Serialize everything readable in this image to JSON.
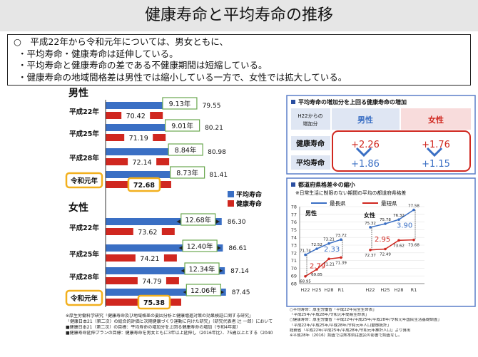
{
  "title": "健康寿命と平均寿命の推移",
  "summary": {
    "lines": [
      "○　平成22年から令和元年については、男女ともに、",
      "・平均寿命・健康寿命は延伸している。",
      "・平均寿命と健康寿命の差である不健康期間は短縮している。",
      "・健康寿命の地域間格差は男性では縮小している一方で、女性では拡大している。"
    ]
  },
  "chart_data": [
    {
      "type": "bar",
      "title": "男性",
      "categories": [
        "平成22年",
        "平成25年",
        "平成28年",
        "令和元年"
      ],
      "series": [
        {
          "name": "平均寿命",
          "values": [
            79.55,
            80.21,
            80.98,
            81.41
          ],
          "color": "#3a6fc4"
        },
        {
          "name": "健康寿命",
          "values": [
            70.42,
            71.19,
            72.14,
            72.68
          ],
          "color": "#d0271f"
        }
      ],
      "gaps": [
        "9.13年",
        "9.01年",
        "8.84年",
        "8.73年"
      ],
      "value_labels": {
        "avg": [
          "79.55",
          "80.21",
          "80.98",
          "81.41"
        ],
        "health": [
          "70.42",
          "71.19",
          "72.14",
          "72.68"
        ]
      },
      "highlight": "令和元年"
    },
    {
      "type": "bar",
      "title": "女性",
      "categories": [
        "平成22年",
        "平成25年",
        "平成28年",
        "令和元年"
      ],
      "series": [
        {
          "name": "平均寿命",
          "values": [
            86.3,
            86.61,
            87.14,
            87.45
          ],
          "color": "#3a6fc4"
        },
        {
          "name": "健康寿命",
          "values": [
            73.62,
            74.21,
            74.79,
            75.38
          ],
          "color": "#d0271f"
        }
      ],
      "gaps": [
        "12.68年",
        "12.40年",
        "12.34年",
        "12.06年"
      ],
      "value_labels": {
        "avg": [
          "86.30",
          "86.61",
          "87.14",
          "87.45"
        ],
        "health": [
          "73.62",
          "74.21",
          "74.79",
          "75.38"
        ]
      },
      "highlight": "令和元年"
    },
    {
      "type": "table",
      "title": "平均寿命の増加分を上回る健康寿命の増加",
      "header": [
        "H22からの増加分",
        "男性",
        "女性"
      ],
      "rows": [
        {
          "label": "健康寿命",
          "male": "+2.26",
          "female": "+1.76"
        },
        {
          "label": "平均寿命",
          "male": "+1.86",
          "female": "+1.15"
        }
      ]
    },
    {
      "type": "line",
      "title": "都道府県格差※の縮小",
      "subtitle": "※日常生活に制限のない期間の平均の都道府県格差",
      "legend": [
        "最長県",
        "最短県"
      ],
      "x": [
        "H22",
        "H25",
        "H28",
        "R1"
      ],
      "ylim": [
        68,
        78
      ],
      "yticks": [
        "68",
        "69",
        "70",
        "71",
        "72",
        "73",
        "74",
        "75",
        "76",
        "77",
        "78"
      ],
      "panels": [
        {
          "name": "男性",
          "max": [
            71.74,
            72.52,
            73.21,
            73.72
          ],
          "min": [
            68.95,
            69.85,
            71.21,
            71.39
          ],
          "max_labels": [
            "71.74",
            "72.52",
            "73.21",
            "73.72"
          ],
          "min_labels": [
            "68.95",
            "69.85",
            "71.21",
            "71.39"
          ],
          "gap_first": "2.79",
          "gap_last": "2.33"
        },
        {
          "name": "女性",
          "max": [
            75.32,
            75.78,
            76.32,
            77.58
          ],
          "min": [
            72.37,
            72.49,
            73.62,
            73.68
          ],
          "max_labels": [
            "75.32",
            "75.78",
            "76.32",
            "77.58"
          ],
          "min_labels": [
            "72.37",
            "72.49",
            "73.62",
            "73.68"
          ],
          "gap_first": "2.95",
          "gap_last": "3.90"
        }
      ]
    }
  ],
  "legend": {
    "avg": "平均寿命",
    "health": "健康寿命"
  },
  "notes": [
    "※厚生労働科学研究「健康寿命及び地域格差の要因分析と健康増進対策の効果検証に関する研究」",
    "「健康日本21（第二次）の総合的評価と次期健康づくり運動に向けた研究」（研究代表者 辻 一郎）において算出",
    "■健康日本21（第二次）の目標：平均寿命の増加分を上回る健康寿命の増加（令和4年度）",
    "■健康寿命延伸プランの目標：健康寿命を男女ともに3年以上延伸し（2016年比）、75歳以上とする（2040年）"
  ],
  "notes2": [
    "○平均寿命：厚生労働省「平成22年完全生命表」",
    "「平成25年/平成28年/令和元年簡易生命表」",
    "○健康寿命：厚生労働省「平成22年/平成25年/平成28年/令和元年国民生活基礎調査」",
    "「平成22年/平成25年/平成28年/令和元年人口動態統計」",
    "総務省「平成22年/平成25年/平成28年/令和元年推計人口」より算出",
    "※平成28年（2016）調査では熊本県は震災の影響で調査なし。"
  ]
}
